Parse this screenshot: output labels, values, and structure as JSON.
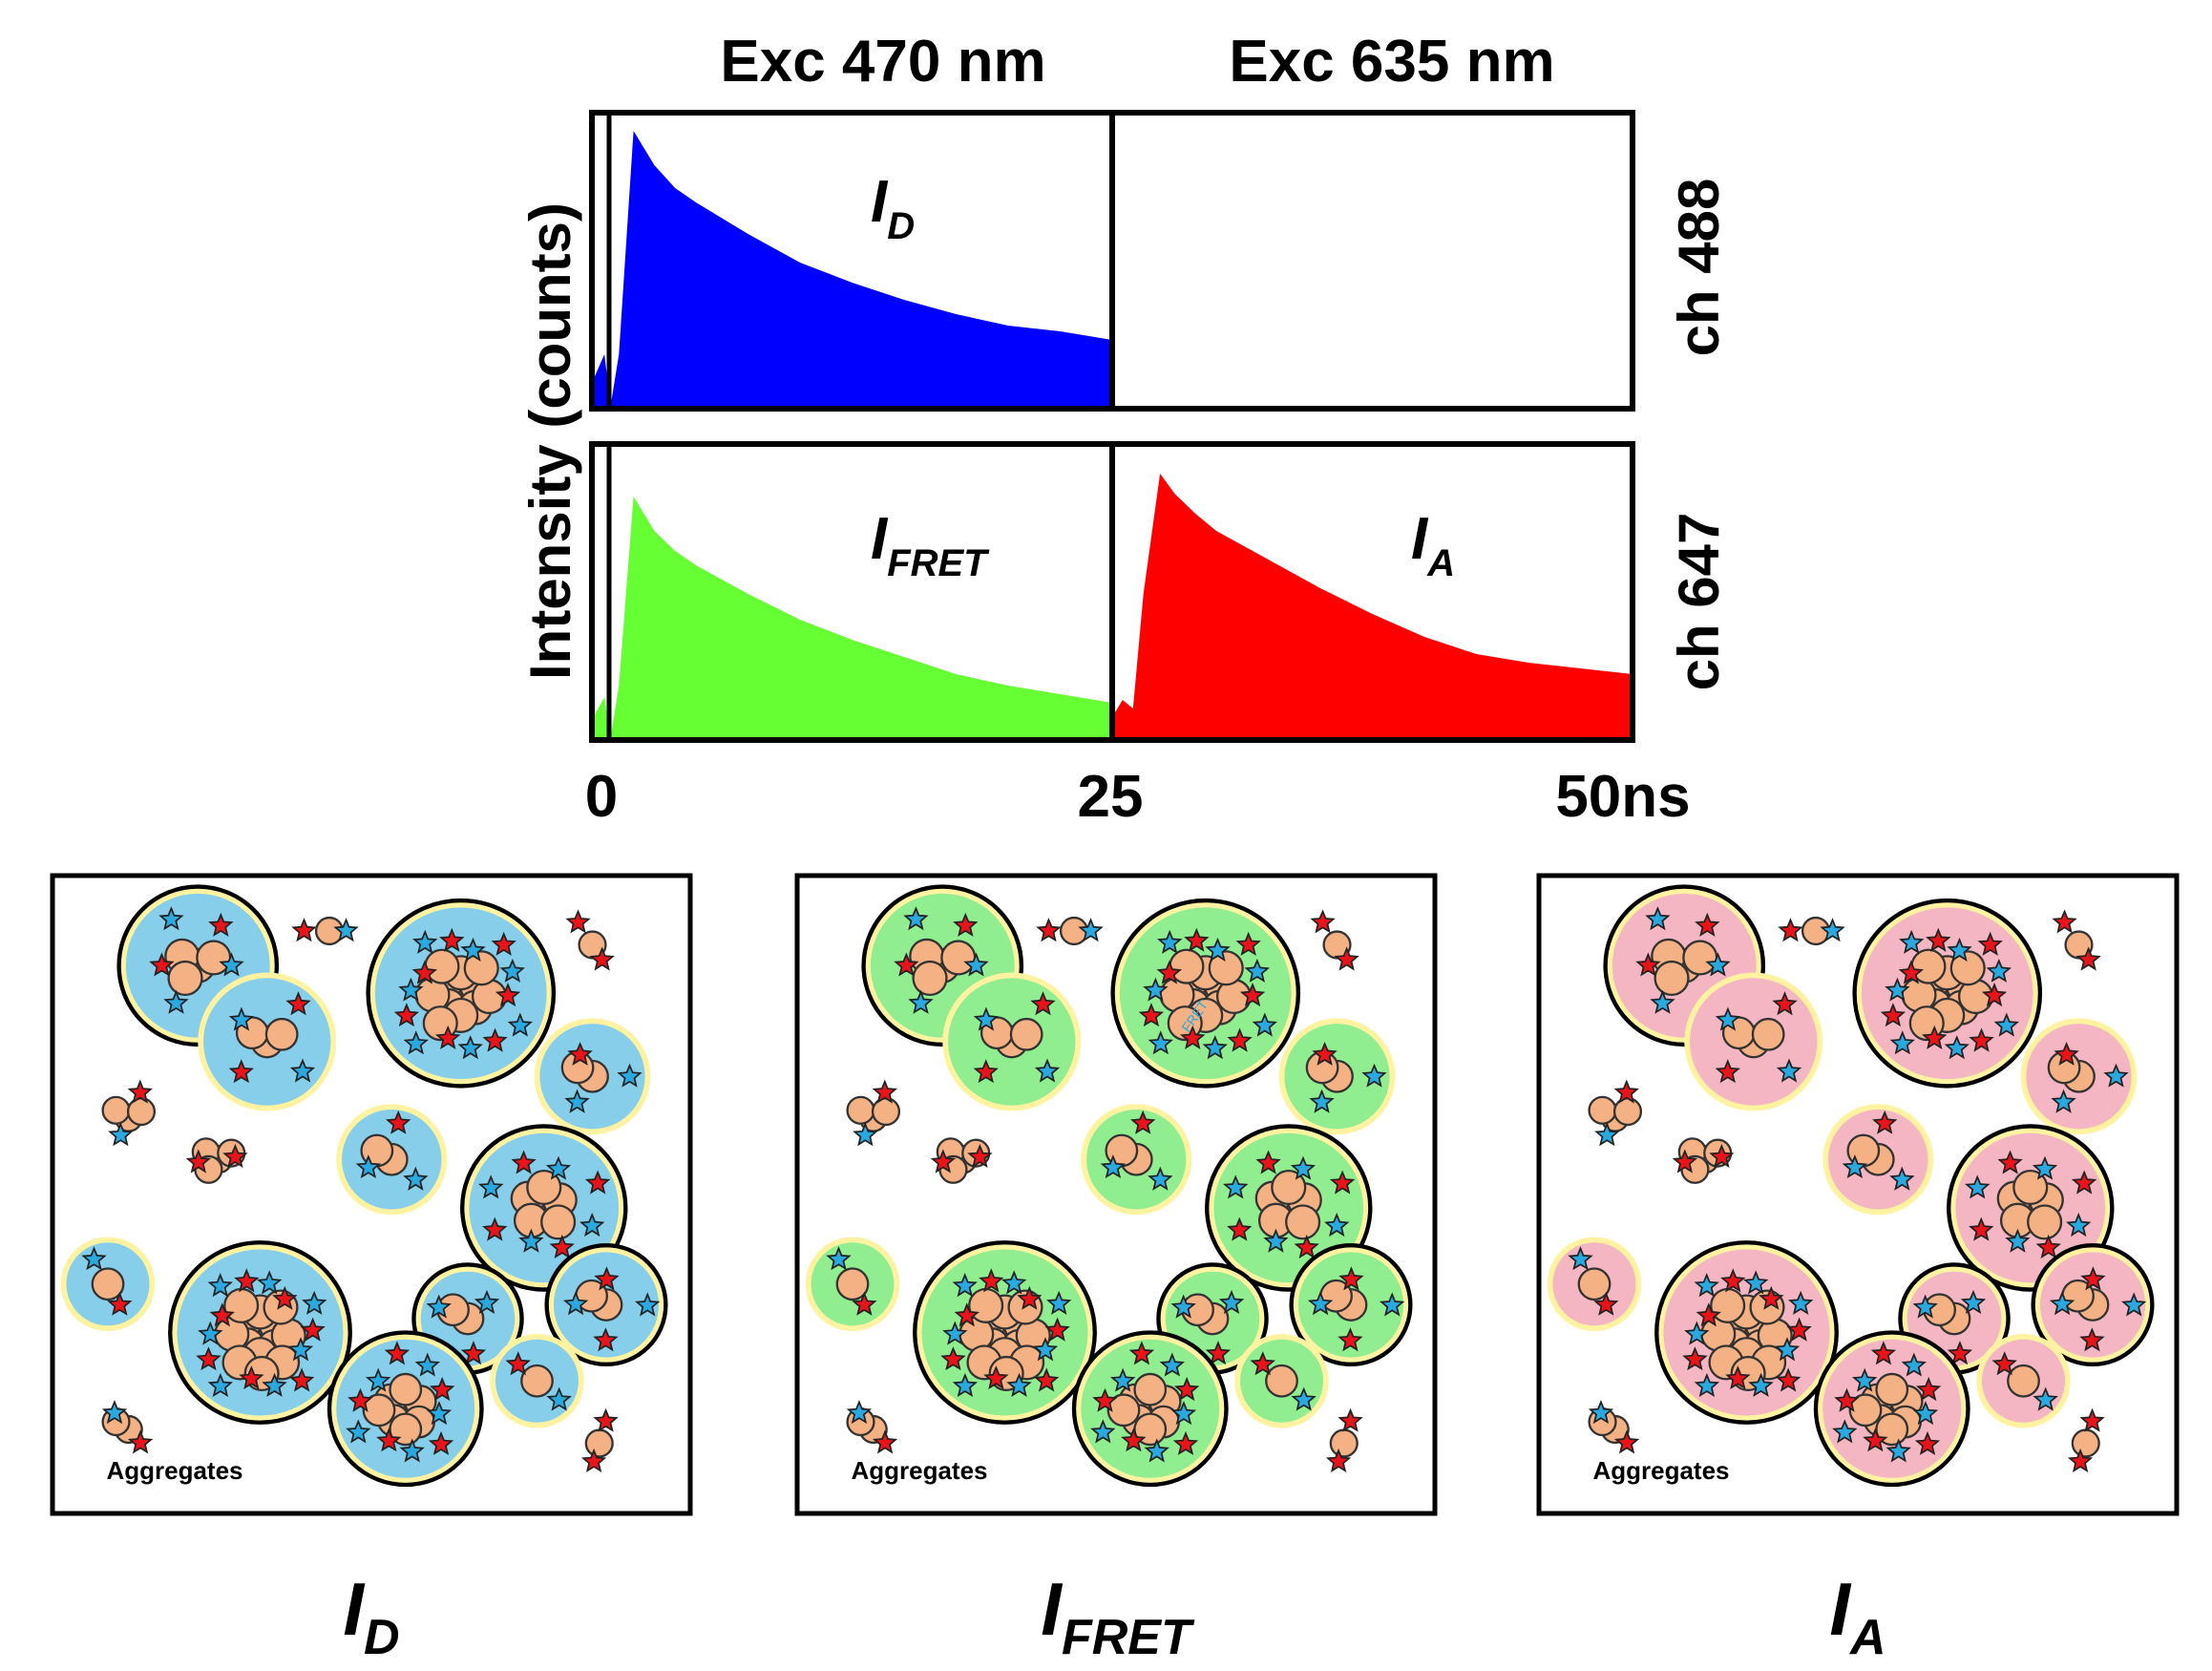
{
  "chart_data": {
    "type": "area",
    "x_unit": "ns",
    "xlim": [
      0,
      50
    ],
    "x_ticks": [
      "0",
      "25",
      "50ns"
    ],
    "x_tick_values": [
      0,
      25,
      50
    ],
    "ylabel": "Intensity (counts)",
    "column_headers": [
      "Exc 470 nm",
      "Exc 635 nm"
    ],
    "row_labels": [
      "ch 488",
      "ch 647"
    ],
    "window_boundary_ns": 25,
    "series": [
      {
        "name": "I_D",
        "main": "I",
        "sub": "D",
        "channel": "ch 488",
        "color": "#0000ff",
        "x": [
          0,
          0.6,
          0.9,
          1.3,
          2.0,
          2.5,
          3.0,
          4.0,
          5.0,
          7.5,
          10,
          12.5,
          15,
          17.5,
          20,
          22.5,
          25
        ],
        "y": [
          0.08,
          0.18,
          0.0,
          0.18,
          0.96,
          0.9,
          0.84,
          0.76,
          0.71,
          0.6,
          0.5,
          0.43,
          0.37,
          0.32,
          0.28,
          0.26,
          0.23
        ]
      },
      {
        "name": "I_FRET",
        "main": "I",
        "sub": "FRET",
        "channel": "ch 647",
        "color": "#66ff33",
        "x": [
          0,
          0.6,
          0.9,
          1.3,
          2.0,
          2.5,
          3.0,
          4.0,
          5.0,
          7.5,
          10,
          12.5,
          15,
          17.5,
          20,
          22.5,
          25
        ],
        "y": [
          0.06,
          0.14,
          0.0,
          0.18,
          0.84,
          0.78,
          0.72,
          0.65,
          0.6,
          0.5,
          0.41,
          0.34,
          0.28,
          0.22,
          0.18,
          0.15,
          0.12
        ]
      },
      {
        "name": "I_A",
        "main": "I",
        "sub": "A",
        "channel": "ch 647",
        "color": "#ff0000",
        "x": [
          25,
          25.5,
          26.0,
          26.5,
          27.3,
          28.0,
          29.0,
          30.0,
          32.5,
          35,
          37.5,
          40,
          42.5,
          45,
          47.5,
          50
        ],
        "y": [
          0.07,
          0.13,
          0.1,
          0.5,
          0.92,
          0.85,
          0.78,
          0.72,
          0.62,
          0.52,
          0.43,
          0.35,
          0.29,
          0.26,
          0.24,
          0.22
        ]
      }
    ]
  },
  "panels": [
    {
      "label_main": "I",
      "label_sub": "D",
      "caption": "Aggregates",
      "fill": "#87ceeb"
    },
    {
      "label_main": "I",
      "label_sub": "FRET",
      "caption": "Aggregates",
      "fill": "#90ee90",
      "fret_text": "FRET"
    },
    {
      "label_main": "I",
      "label_sub": "A",
      "caption": "Aggregates",
      "fill": "#f4b6c2"
    }
  ],
  "colors": {
    "protein": "#f4b183",
    "donor_star": "#29a9e0",
    "acceptor_star": "#e8141a",
    "halo": "#fff2a0"
  }
}
